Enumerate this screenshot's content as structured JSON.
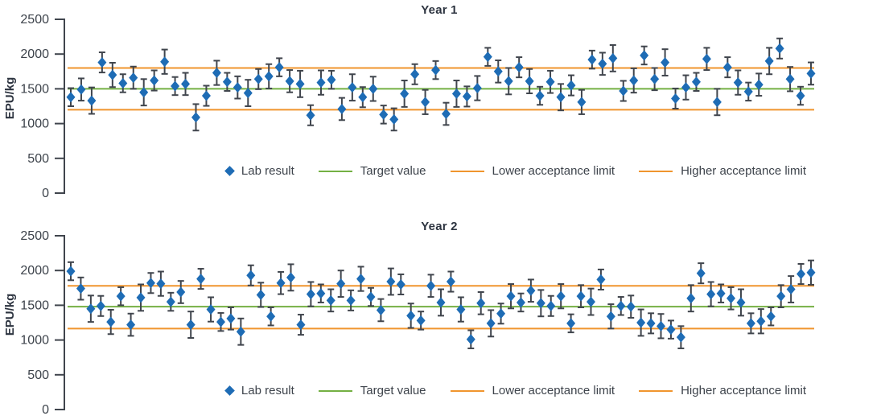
{
  "colors": {
    "point": "#1e6cb5",
    "error_bar": "#40454d",
    "target": "#74b043",
    "limit": "#f0952e",
    "axis": "#40454d",
    "text": "#3d434b",
    "title": "#2d3440",
    "background": "#ffffff"
  },
  "error_model": {
    "base": 130,
    "step": 15,
    "mod": 5,
    "factor": 7,
    "note": "error bars unlabeled in figure; approx symmetric ±130-200 EPU/kg"
  },
  "chart_data": [
    {
      "type": "scatter",
      "title": "Year 1",
      "ylabel": "EPU/kg",
      "xlabel": "",
      "ylim": [
        0,
        2500
      ],
      "yticks": [
        0,
        500,
        1000,
        1500,
        2000,
        2500
      ],
      "grid": false,
      "legend_position": "bottom-right",
      "legend": [
        "Lab result",
        "Target value",
        "Lower acceptance limit",
        "Higher acceptance limit"
      ],
      "reference_lines": {
        "target_value": 1500,
        "lower_acceptance_limit": 1200,
        "higher_acceptance_limit": 1800
      },
      "series": [
        {
          "name": "Lab result",
          "marker": "diamond",
          "values": [
            1380,
            1490,
            1330,
            1880,
            1700,
            1580,
            1660,
            1450,
            1620,
            1890,
            1540,
            1570,
            1090,
            1400,
            1730,
            1600,
            1520,
            1440,
            1640,
            1680,
            1810,
            1610,
            1570,
            1120,
            1590,
            1630,
            1210,
            1520,
            1380,
            1500,
            1130,
            1060,
            1430,
            1710,
            1310,
            1770,
            1140,
            1430,
            1390,
            1510,
            1960,
            1750,
            1610,
            1810,
            1610,
            1400,
            1600,
            1380,
            1550,
            1310,
            1920,
            1860,
            1940,
            1470,
            1620,
            1980,
            1640,
            1880,
            1360,
            1520,
            1600,
            1930,
            1310,
            1810,
            1590,
            1460,
            1560,
            1900,
            2080,
            1640,
            1400,
            1720
          ]
        }
      ]
    },
    {
      "type": "scatter",
      "title": "Year 2",
      "ylabel": "EPU/kg",
      "xlabel": "",
      "ylim": [
        0,
        2500
      ],
      "yticks": [
        0,
        500,
        1000,
        1500,
        2000,
        2500
      ],
      "grid": false,
      "legend_position": "bottom-right",
      "legend": [
        "Lab result",
        "Target value",
        "Lower acceptance limit",
        "Higher acceptance limit"
      ],
      "reference_lines": {
        "target_value": 1480,
        "lower_acceptance_limit": 1165,
        "higher_acceptance_limit": 1780
      },
      "series": [
        {
          "name": "Lab result",
          "marker": "diamond",
          "values": [
            1990,
            1740,
            1450,
            1490,
            1260,
            1630,
            1220,
            1610,
            1820,
            1810,
            1550,
            1690,
            1220,
            1880,
            1440,
            1260,
            1310,
            1120,
            1930,
            1650,
            1340,
            1820,
            1900,
            1220,
            1660,
            1670,
            1570,
            1810,
            1570,
            1880,
            1620,
            1430,
            1840,
            1800,
            1350,
            1280,
            1780,
            1540,
            1840,
            1440,
            1010,
            1530,
            1240,
            1380,
            1630,
            1540,
            1710,
            1530,
            1490,
            1630,
            1240,
            1630,
            1550,
            1870,
            1340,
            1490,
            1480,
            1250,
            1240,
            1200,
            1150,
            1040,
            1600,
            1960,
            1660,
            1670,
            1600,
            1540,
            1240,
            1270,
            1340,
            1630,
            1730,
            1950,
            1970
          ]
        }
      ]
    }
  ]
}
